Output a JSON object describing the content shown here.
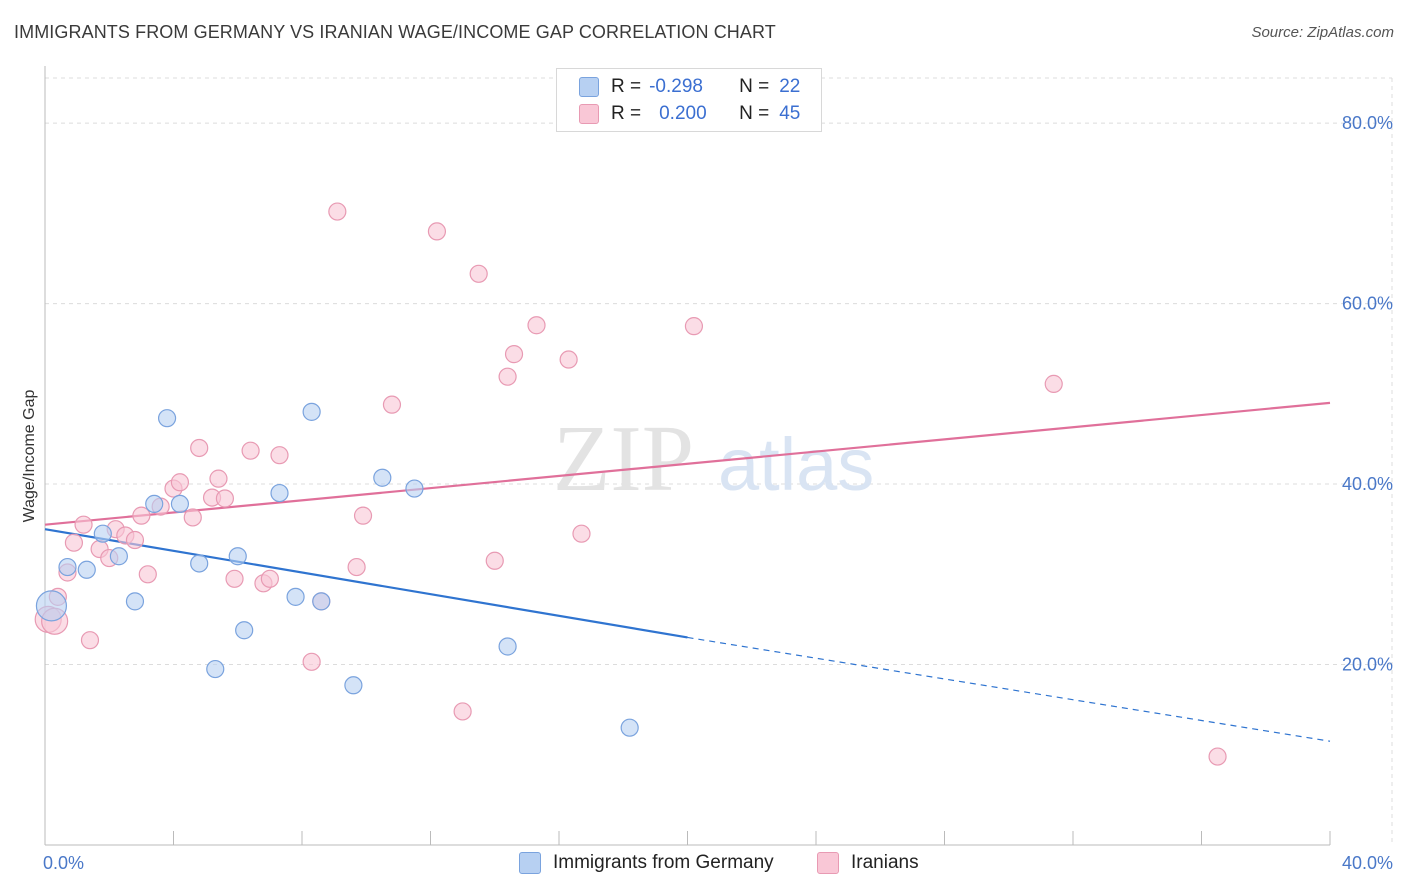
{
  "title": "IMMIGRANTS FROM GERMANY VS IRANIAN WAGE/INCOME GAP CORRELATION CHART",
  "source": "Source: ZipAtlas.com",
  "watermark": {
    "zip": "ZIP",
    "atlas": "atlas"
  },
  "legend": {
    "row1": {
      "r_label": "R =",
      "r_value": "-0.298",
      "n_label": "N =",
      "n_value": "22"
    },
    "row2": {
      "r_label": "R =",
      "r_value": "0.200",
      "n_label": "N =",
      "n_value": "45"
    }
  },
  "colors": {
    "blue_fill": "#b7d0f2",
    "blue_stroke": "#7aa3de",
    "blue_line": "#2f74d0",
    "pink_fill": "#f9c7d6",
    "pink_stroke": "#e89ab3",
    "pink_line": "#e0709a",
    "grid": "#dcdcdc",
    "axis_text": "#4a78c8"
  },
  "chart_data": {
    "type": "scatter",
    "title": "IMMIGRANTS FROM GERMANY VS IRANIAN WAGE/INCOME GAP CORRELATION CHART",
    "xlabel": "",
    "ylabel": "Wage/Income Gap",
    "xlim": [
      0,
      40
    ],
    "ylim": [
      0,
      85
    ],
    "x_tick_labels": [
      {
        "value": 0,
        "label": "0.0%"
      },
      {
        "value": 40,
        "label": "40.0%"
      }
    ],
    "y_tick_labels": [
      {
        "value": 20,
        "label": "20.0%"
      },
      {
        "value": 40,
        "label": "40.0%"
      },
      {
        "value": 60,
        "label": "60.0%"
      },
      {
        "value": 80,
        "label": "80.0%"
      }
    ],
    "series": [
      {
        "name": "Immigrants from Germany",
        "color": "blue",
        "points": [
          [
            0.2,
            26.5
          ],
          [
            0.7,
            30.8
          ],
          [
            1.3,
            30.5
          ],
          [
            1.8,
            34.5
          ],
          [
            2.3,
            32.0
          ],
          [
            2.8,
            27.0
          ],
          [
            3.4,
            37.8
          ],
          [
            3.8,
            47.3
          ],
          [
            4.2,
            37.8
          ],
          [
            4.8,
            31.2
          ],
          [
            5.3,
            19.5
          ],
          [
            6.0,
            32.0
          ],
          [
            6.2,
            23.8
          ],
          [
            7.3,
            39.0
          ],
          [
            7.8,
            27.5
          ],
          [
            8.3,
            48.0
          ],
          [
            8.6,
            27.0
          ],
          [
            9.6,
            17.7
          ],
          [
            10.5,
            40.7
          ],
          [
            11.5,
            39.5
          ],
          [
            14.4,
            22.0
          ],
          [
            18.2,
            13.0
          ]
        ],
        "trend": {
          "x_start": 0,
          "y_start": 35.0,
          "x_solid_end": 20,
          "y_solid_end": 23.0,
          "x_dash_end": 40,
          "y_dash_end": 11.5
        }
      },
      {
        "name": "Iranians",
        "color": "pink",
        "points": [
          [
            0.1,
            25.0
          ],
          [
            0.4,
            27.5
          ],
          [
            0.7,
            30.2
          ],
          [
            0.9,
            33.5
          ],
          [
            1.2,
            35.5
          ],
          [
            1.4,
            22.7
          ],
          [
            1.7,
            32.8
          ],
          [
            2.0,
            31.8
          ],
          [
            2.2,
            35.0
          ],
          [
            2.5,
            34.3
          ],
          [
            2.8,
            33.8
          ],
          [
            3.0,
            36.5
          ],
          [
            3.2,
            30.0
          ],
          [
            3.6,
            37.5
          ],
          [
            4.0,
            39.5
          ],
          [
            4.2,
            40.2
          ],
          [
            4.6,
            36.3
          ],
          [
            4.8,
            44.0
          ],
          [
            5.2,
            38.5
          ],
          [
            5.4,
            40.6
          ],
          [
            5.6,
            38.4
          ],
          [
            5.9,
            29.5
          ],
          [
            6.4,
            43.7
          ],
          [
            6.8,
            29.0
          ],
          [
            7.0,
            29.5
          ],
          [
            7.3,
            43.2
          ],
          [
            8.3,
            20.3
          ],
          [
            8.6,
            27.0
          ],
          [
            9.1,
            70.2
          ],
          [
            9.7,
            30.8
          ],
          [
            9.9,
            36.5
          ],
          [
            10.8,
            48.8
          ],
          [
            12.2,
            68.0
          ],
          [
            13.0,
            14.8
          ],
          [
            13.5,
            63.3
          ],
          [
            14.0,
            31.5
          ],
          [
            14.4,
            51.9
          ],
          [
            14.6,
            54.4
          ],
          [
            15.3,
            57.6
          ],
          [
            16.3,
            53.8
          ],
          [
            16.7,
            34.5
          ],
          [
            20.2,
            57.5
          ],
          [
            31.4,
            51.1
          ],
          [
            36.5,
            9.8
          ],
          [
            0.3,
            24.8
          ]
        ],
        "trend": {
          "x_start": 0,
          "y_start": 35.5,
          "x_end": 40,
          "y_end": 49.0
        }
      }
    ]
  },
  "bottom_legend": {
    "item1": "Immigrants from Germany",
    "item2": "Iranians"
  }
}
